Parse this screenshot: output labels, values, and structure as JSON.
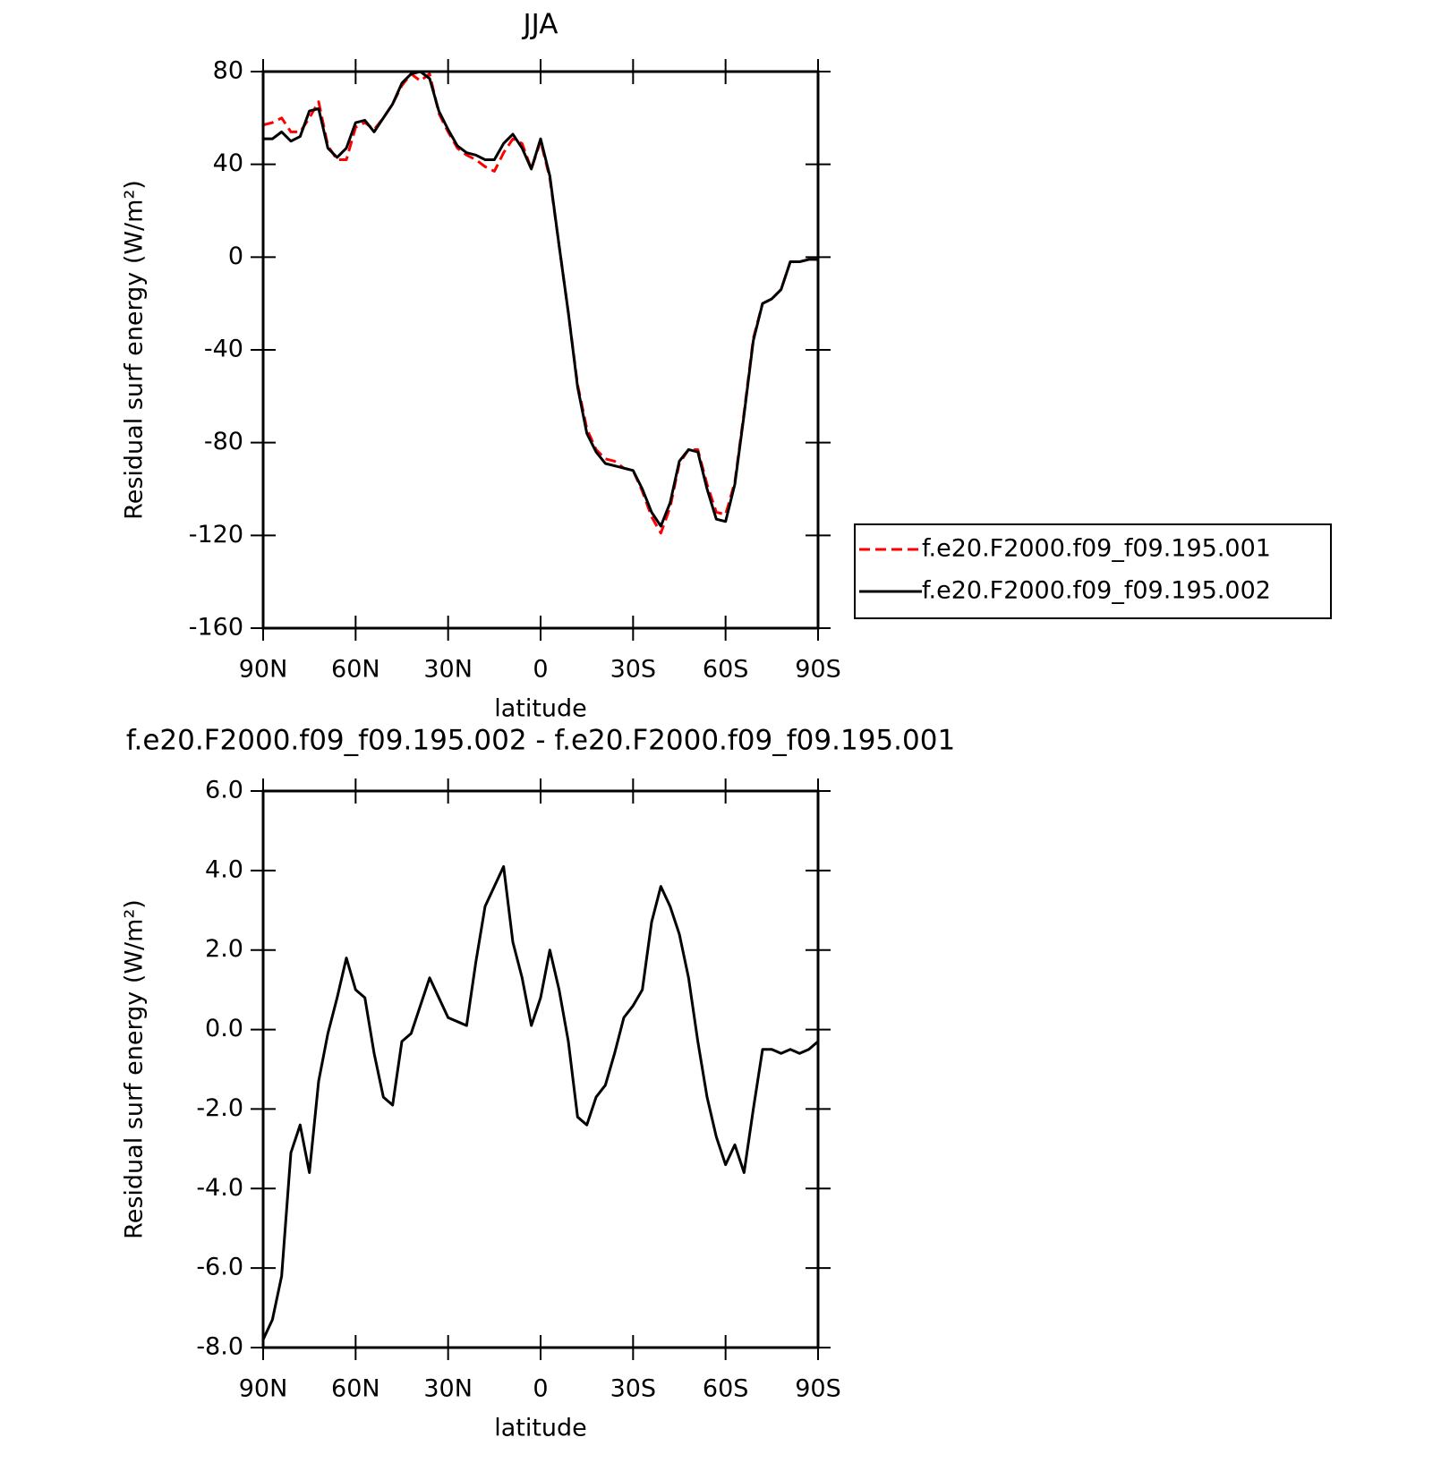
{
  "chart_data": [
    {
      "type": "line",
      "title": "JJA",
      "xlabel": "latitude",
      "ylabel": "Residual surf energy (W/m²)",
      "x": [
        90,
        87,
        84,
        81,
        78,
        75,
        72,
        69,
        66,
        63,
        60,
        57,
        54,
        51,
        48,
        45,
        42,
        39,
        36,
        33,
        30,
        27,
        24,
        21,
        18,
        15,
        12,
        9,
        6,
        3,
        0,
        -3,
        -6,
        -9,
        -12,
        -15,
        -18,
        -21,
        -24,
        -27,
        -30,
        -33,
        -36,
        -39,
        -42,
        -45,
        -48,
        -51,
        -54,
        -57,
        -60,
        -63,
        -66,
        -69,
        -72,
        -75,
        -78,
        -81,
        -84,
        -87,
        -90
      ],
      "series": [
        {
          "name": "f.e20.F2000.f09_f09.195.001",
          "color": "#ff0000",
          "dash": true,
          "values": [
            57,
            58,
            60,
            54,
            54,
            60,
            67,
            48,
            42,
            42,
            56,
            58,
            55,
            60,
            66,
            74,
            79,
            76,
            79,
            62,
            54,
            47,
            44,
            42,
            39,
            37,
            45,
            51,
            49,
            38,
            50,
            34,
            5,
            -24,
            -55,
            -74,
            -83,
            -87,
            -88,
            -91,
            -92,
            -101,
            -112,
            -119,
            -108,
            -89,
            -83,
            -83,
            -98,
            -110,
            -111,
            -97,
            -67,
            -35,
            -20,
            -18,
            -14,
            -2,
            -2,
            -1,
            -1
          ]
        },
        {
          "name": "f.e20.F2000.f09_f09.195.002",
          "color": "#000000",
          "dash": false,
          "values": [
            51,
            51,
            54,
            50,
            52,
            63,
            64,
            47,
            43,
            47,
            58,
            59,
            54,
            60,
            66,
            75,
            79,
            80,
            77,
            63,
            55,
            48,
            45,
            44,
            42,
            42,
            49,
            53,
            47,
            38,
            51,
            35,
            5,
            -24,
            -56,
            -76,
            -84,
            -89,
            -90,
            -91,
            -92,
            -100,
            -110,
            -116,
            -106,
            -88,
            -83,
            -84,
            -100,
            -113,
            -114,
            -98,
            -68,
            -36,
            -20,
            -18,
            -14,
            -2,
            -2,
            -1,
            -1
          ]
        }
      ],
      "xlim": [
        90,
        -90
      ],
      "xticks": [
        {
          "value": 90,
          "label": "90N"
        },
        {
          "value": 60,
          "label": "60N"
        },
        {
          "value": 30,
          "label": "30N"
        },
        0,
        {
          "value": -30,
          "label": "30S"
        },
        {
          "value": -60,
          "label": "60S"
        },
        {
          "value": -90,
          "label": "90S"
        }
      ],
      "ylim": [
        -160,
        80
      ],
      "yticks": [
        -160,
        -120,
        -80,
        -40,
        0,
        40,
        80
      ],
      "legend": "outside-right"
    },
    {
      "type": "line",
      "title": "f.e20.F2000.f09_f09.195.002 - f.e20.F2000.f09_f09.195.001",
      "xlabel": "latitude",
      "ylabel": "Residual surf energy (W/m²)",
      "x": [
        90,
        87,
        84,
        81,
        78,
        75,
        72,
        69,
        66,
        63,
        60,
        57,
        54,
        51,
        48,
        45,
        42,
        39,
        36,
        33,
        30,
        27,
        24,
        21,
        18,
        15,
        12,
        9,
        6,
        3,
        0,
        -3,
        -6,
        -9,
        -12,
        -15,
        -18,
        -21,
        -24,
        -27,
        -30,
        -33,
        -36,
        -39,
        -42,
        -45,
        -48,
        -51,
        -54,
        -57,
        -60,
        -63,
        -66,
        -69,
        -72,
        -75,
        -78,
        -81,
        -84,
        -87,
        -90
      ],
      "values": [
        -7.8,
        -7.3,
        -6.2,
        -3.1,
        -2.4,
        -3.6,
        -1.3,
        -0.1,
        0.8,
        1.8,
        1.0,
        0.8,
        -0.6,
        -1.7,
        -1.9,
        -0.3,
        -0.1,
        0.6,
        1.3,
        0.8,
        0.3,
        0.2,
        0.1,
        1.7,
        3.1,
        3.6,
        4.1,
        2.2,
        1.3,
        0.1,
        0.8,
        2.0,
        1.0,
        -0.3,
        -2.2,
        -2.4,
        -1.7,
        -1.4,
        -0.6,
        0.3,
        0.6,
        1.0,
        2.7,
        3.6,
        3.1,
        2.4,
        1.3,
        -0.3,
        -1.7,
        -2.7,
        -3.4,
        -2.9,
        -3.6,
        -2.0,
        -0.5,
        -0.5,
        -0.6,
        -0.5,
        -0.6,
        -0.5,
        -0.3
      ],
      "color": "#000000",
      "xlim": [
        90,
        -90
      ],
      "xticks": [
        {
          "value": 90,
          "label": "90N"
        },
        {
          "value": 60,
          "label": "60N"
        },
        {
          "value": 30,
          "label": "30N"
        },
        0,
        {
          "value": -30,
          "label": "30S"
        },
        {
          "value": -60,
          "label": "60S"
        },
        {
          "value": -90,
          "label": "90S"
        }
      ],
      "ylim": [
        -8,
        6
      ],
      "yticks": [
        {
          "value": -8,
          "label": "-8.0"
        },
        {
          "value": -6,
          "label": "-6.0"
        },
        {
          "value": -4,
          "label": "-4.0"
        },
        {
          "value": -2,
          "label": "-2.0"
        },
        {
          "value": 0,
          "label": "0.0"
        },
        {
          "value": 2,
          "label": "2.0"
        },
        {
          "value": 4,
          "label": "4.0"
        },
        {
          "value": 6,
          "label": "6.0"
        }
      ]
    }
  ]
}
